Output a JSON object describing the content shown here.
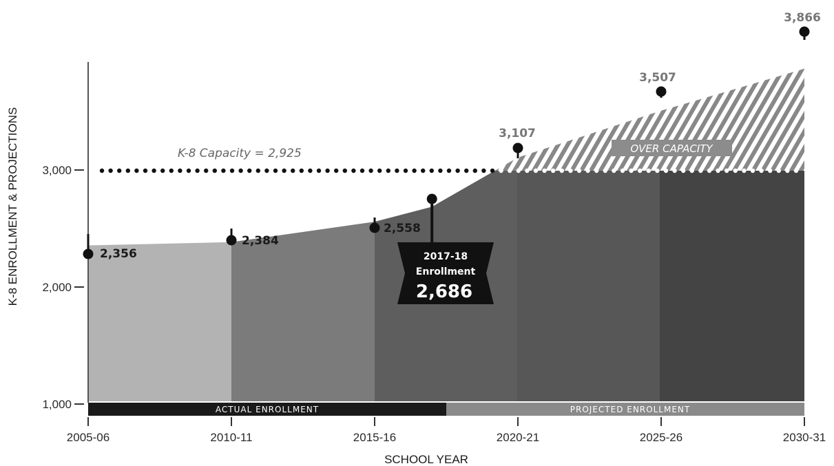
{
  "chart_data": {
    "type": "area",
    "xlabel": "SCHOOL YEAR",
    "ylabel": "K-8 ENROLLMENT & PROJECTIONS",
    "ylim": [
      1000,
      3866
    ],
    "y_ticks": [
      "1,000",
      "2,000",
      "3,000"
    ],
    "y_tick_values": [
      1000,
      2000,
      3000
    ],
    "categories": [
      "2005-06",
      "2010-11",
      "2015-16",
      "2020-21",
      "2025-26",
      "2030-31"
    ],
    "points": [
      {
        "year": "2005-06",
        "value": 2356,
        "label": "2,356"
      },
      {
        "year": "2010-11",
        "value": 2384,
        "label": "2,384"
      },
      {
        "year": "2015-16",
        "value": 2558,
        "label": "2,558"
      },
      {
        "year": "2017-18",
        "value": 2686,
        "label": "2,686"
      },
      {
        "year": "2020-21",
        "value": 3107,
        "label": "3,107"
      },
      {
        "year": "2025-26",
        "value": 3507,
        "label": "3,507"
      },
      {
        "year": "2030-31",
        "value": 3866,
        "label": "3,866"
      }
    ],
    "capacity": {
      "value": 2925,
      "label": "K-8 Capacity = 2,925"
    },
    "over_capacity_label": "OVER CAPACITY",
    "bands": {
      "actual": "ACTUAL ENROLLMENT",
      "projected": "PROJECTED ENROLLMENT"
    },
    "callout": {
      "line1": "2017-18",
      "line2": "Enrollment",
      "value": "2,686"
    },
    "colors": {
      "segments": [
        "#b3b3b3",
        "#7b7b7b",
        "#5e5e5e",
        "#575757",
        "#444444",
        "#222222"
      ],
      "actual_band": "#1a1a1a",
      "projected_band": "#8a8a8a",
      "stripes": "#888888",
      "capacity_line": "#111111",
      "marker": "#111111"
    }
  }
}
